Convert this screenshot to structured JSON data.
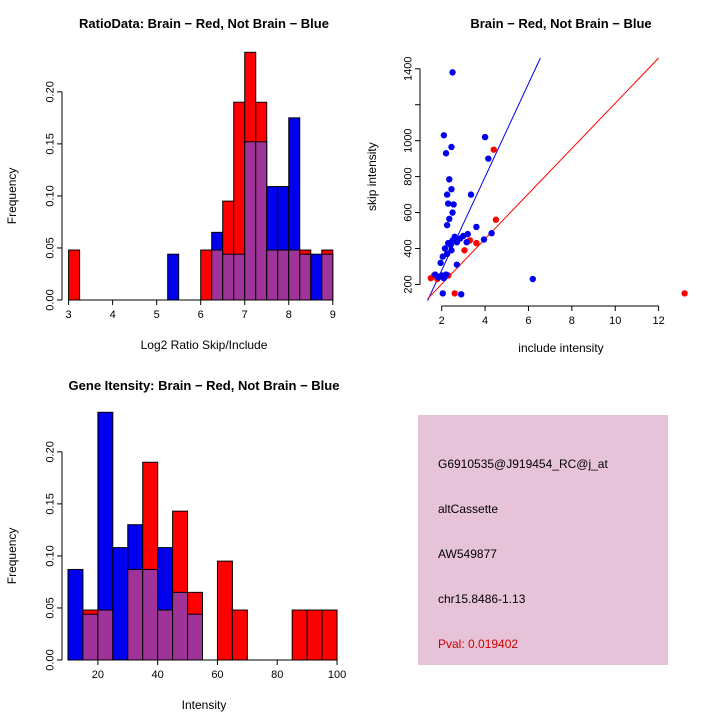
{
  "figure": {
    "background": "#FFFFFF"
  },
  "colors": {
    "brain": "#FF0000",
    "not_brain": "#0000EE",
    "overlap": "#A03399",
    "info_bg": "#E6C3D8",
    "pval_red": "#CC0000",
    "axis": "#000000"
  },
  "chart_data": [
    {
      "id": "ratio-histogram",
      "type": "bar",
      "title": "RatioData: Brain − Red, Not Brain − Blue",
      "xlabel": "Log2 Ratio Skip/Include",
      "ylabel": "Frequency",
      "xlim": [
        2.85,
        9.3
      ],
      "ylim": [
        0,
        0.245
      ],
      "xticks": [
        3,
        4,
        5,
        6,
        7,
        8,
        9
      ],
      "yticks": [
        0,
        0.05,
        0.1,
        0.15,
        0.2
      ],
      "ytick_labels": [
        "0.00",
        "0.05",
        "0.10",
        "0.15",
        "0.20"
      ],
      "bin_width": 0.25,
      "legend": [
        {
          "name": "Brain",
          "color": "#FF0000"
        },
        {
          "name": "Not Brain",
          "color": "#0000EE"
        }
      ],
      "series": [
        {
          "name": "Brain",
          "color": "#FF0000",
          "bins": [
            [
              3.0,
              0.048
            ],
            [
              6.0,
              0.048
            ],
            [
              6.25,
              0.048
            ],
            [
              6.5,
              0.095
            ],
            [
              6.75,
              0.19
            ],
            [
              7.0,
              0.238
            ],
            [
              7.25,
              0.19
            ],
            [
              7.5,
              0.048
            ],
            [
              7.75,
              0.048
            ],
            [
              8.0,
              0.048
            ],
            [
              8.25,
              0.048
            ],
            [
              8.75,
              0.048
            ]
          ]
        },
        {
          "name": "Not Brain",
          "color": "#0000EE",
          "bins": [
            [
              5.25,
              0.044
            ],
            [
              6.25,
              0.065
            ],
            [
              6.5,
              0.044
            ],
            [
              6.75,
              0.044
            ],
            [
              7.0,
              0.152
            ],
            [
              7.25,
              0.152
            ],
            [
              7.5,
              0.109
            ],
            [
              7.75,
              0.109
            ],
            [
              8.0,
              0.175
            ],
            [
              8.25,
              0.044
            ],
            [
              8.5,
              0.044
            ],
            [
              8.75,
              0.044
            ]
          ]
        }
      ]
    },
    {
      "id": "intensity-scatter",
      "type": "scatter",
      "title": "Brain − Red, Not Brain − Blue",
      "xlabel": "include intensity",
      "ylabel": "skip intensity",
      "xlim": [
        1,
        14
      ],
      "ylim": [
        80,
        1460
      ],
      "xticks": [
        2,
        4,
        6,
        8,
        10,
        12
      ],
      "yticks": [
        200,
        400,
        600,
        800,
        1000,
        1200,
        1400
      ],
      "ytick_labels": [
        "200",
        "400",
        "600",
        "800",
        "1000",
        "",
        "1400"
      ],
      "legend": [
        {
          "name": "Brain",
          "color": "#FF0000"
        },
        {
          "name": "Not Brain",
          "color": "#0000EE"
        }
      ],
      "series": [
        {
          "name": "Brain",
          "color": "#FF0000",
          "points": [
            [
              1.5,
              235
            ],
            [
              1.65,
              250
            ],
            [
              1.8,
              230
            ],
            [
              1.95,
              245
            ],
            [
              2.1,
              240
            ],
            [
              2.3,
              250
            ],
            [
              2.6,
              150
            ],
            [
              3.05,
              390
            ],
            [
              3.3,
              445
            ],
            [
              3.6,
              430
            ],
            [
              4.4,
              950
            ],
            [
              4.5,
              560
            ],
            [
              13.2,
              150
            ]
          ]
        },
        {
          "name": "Not Brain",
          "color": "#0000EE",
          "points": [
            [
              1.7,
              255
            ],
            [
              1.85,
              240
            ],
            [
              2.0,
              250
            ],
            [
              2.1,
              235
            ],
            [
              2.2,
              255
            ],
            [
              1.95,
              320
            ],
            [
              2.05,
              355
            ],
            [
              2.15,
              400
            ],
            [
              2.3,
              430
            ],
            [
              2.4,
              420
            ],
            [
              2.5,
              445
            ],
            [
              2.25,
              370
            ],
            [
              2.6,
              465
            ],
            [
              2.7,
              435
            ],
            [
              2.45,
              390
            ],
            [
              2.85,
              455
            ],
            [
              3.0,
              470
            ],
            [
              3.15,
              435
            ],
            [
              2.25,
              530
            ],
            [
              2.35,
              565
            ],
            [
              2.5,
              600
            ],
            [
              2.3,
              650
            ],
            [
              2.55,
              645
            ],
            [
              2.25,
              700
            ],
            [
              2.45,
              730
            ],
            [
              2.35,
              785
            ],
            [
              2.2,
              930
            ],
            [
              2.45,
              965
            ],
            [
              2.1,
              1030
            ],
            [
              2.5,
              1380
            ],
            [
              3.35,
              700
            ],
            [
              3.6,
              520
            ],
            [
              3.2,
              480
            ],
            [
              4.0,
              1020
            ],
            [
              4.15,
              900
            ],
            [
              3.95,
              450
            ],
            [
              4.3,
              485
            ],
            [
              6.2,
              230
            ],
            [
              2.05,
              150
            ],
            [
              2.9,
              145
            ],
            [
              2.7,
              310
            ]
          ]
        }
      ],
      "lines": [
        {
          "name": "not-brain-fit-line",
          "color": "#0000EE",
          "x1": 1.35,
          "y1": 110,
          "x2": 6.55,
          "y2": 1460
        },
        {
          "name": "brain-fit-line",
          "color": "#FF0000",
          "x1": 1.35,
          "y1": 120,
          "x2": 12.0,
          "y2": 1460
        }
      ]
    },
    {
      "id": "gene-intensity-histogram",
      "type": "bar",
      "title": "Gene Itensity: Brain − Red, Not Brain − Blue",
      "xlabel": "Intensity",
      "ylabel": "Frequency",
      "xlim": [
        8,
        103
      ],
      "ylim": [
        0,
        0.245
      ],
      "xticks": [
        20,
        40,
        60,
        80,
        100
      ],
      "yticks": [
        0,
        0.05,
        0.1,
        0.15,
        0.2
      ],
      "ytick_labels": [
        "0.00",
        "0.05",
        "0.10",
        "0.15",
        "0.20"
      ],
      "bin_width": 5,
      "legend": [
        {
          "name": "Brain",
          "color": "#FF0000"
        },
        {
          "name": "Not Brain",
          "color": "#0000EE"
        }
      ],
      "series": [
        {
          "name": "Brain",
          "color": "#FF0000",
          "bins": [
            [
              15,
              0.048
            ],
            [
              20,
              0.048
            ],
            [
              30,
              0.087
            ],
            [
              35,
              0.19
            ],
            [
              40,
              0.048
            ],
            [
              45,
              0.143
            ],
            [
              50,
              0.065
            ],
            [
              60,
              0.095
            ],
            [
              65,
              0.048
            ],
            [
              85,
              0.048
            ],
            [
              90,
              0.048
            ],
            [
              95,
              0.048
            ]
          ]
        },
        {
          "name": "Not Brain",
          "color": "#0000EE",
          "bins": [
            [
              10,
              0.087
            ],
            [
              15,
              0.044
            ],
            [
              20,
              0.238
            ],
            [
              25,
              0.108
            ],
            [
              30,
              0.13
            ],
            [
              35,
              0.087
            ],
            [
              40,
              0.108
            ],
            [
              45,
              0.065
            ],
            [
              50,
              0.044
            ]
          ]
        }
      ]
    }
  ],
  "info_panel": {
    "lines": [
      {
        "name": "probe-id",
        "text": "G6910535@J919454_RC@j_at",
        "color": "#000000"
      },
      {
        "name": "splice-type",
        "text": "altCassette",
        "color": "#000000"
      },
      {
        "name": "accession",
        "text": "AW549877",
        "color": "#000000"
      },
      {
        "name": "locus",
        "text": "chr15.8486-1.13",
        "color": "#000000"
      },
      {
        "name": "pval",
        "text": "Pval: 0.019402",
        "color": "#CC0000"
      }
    ]
  }
}
